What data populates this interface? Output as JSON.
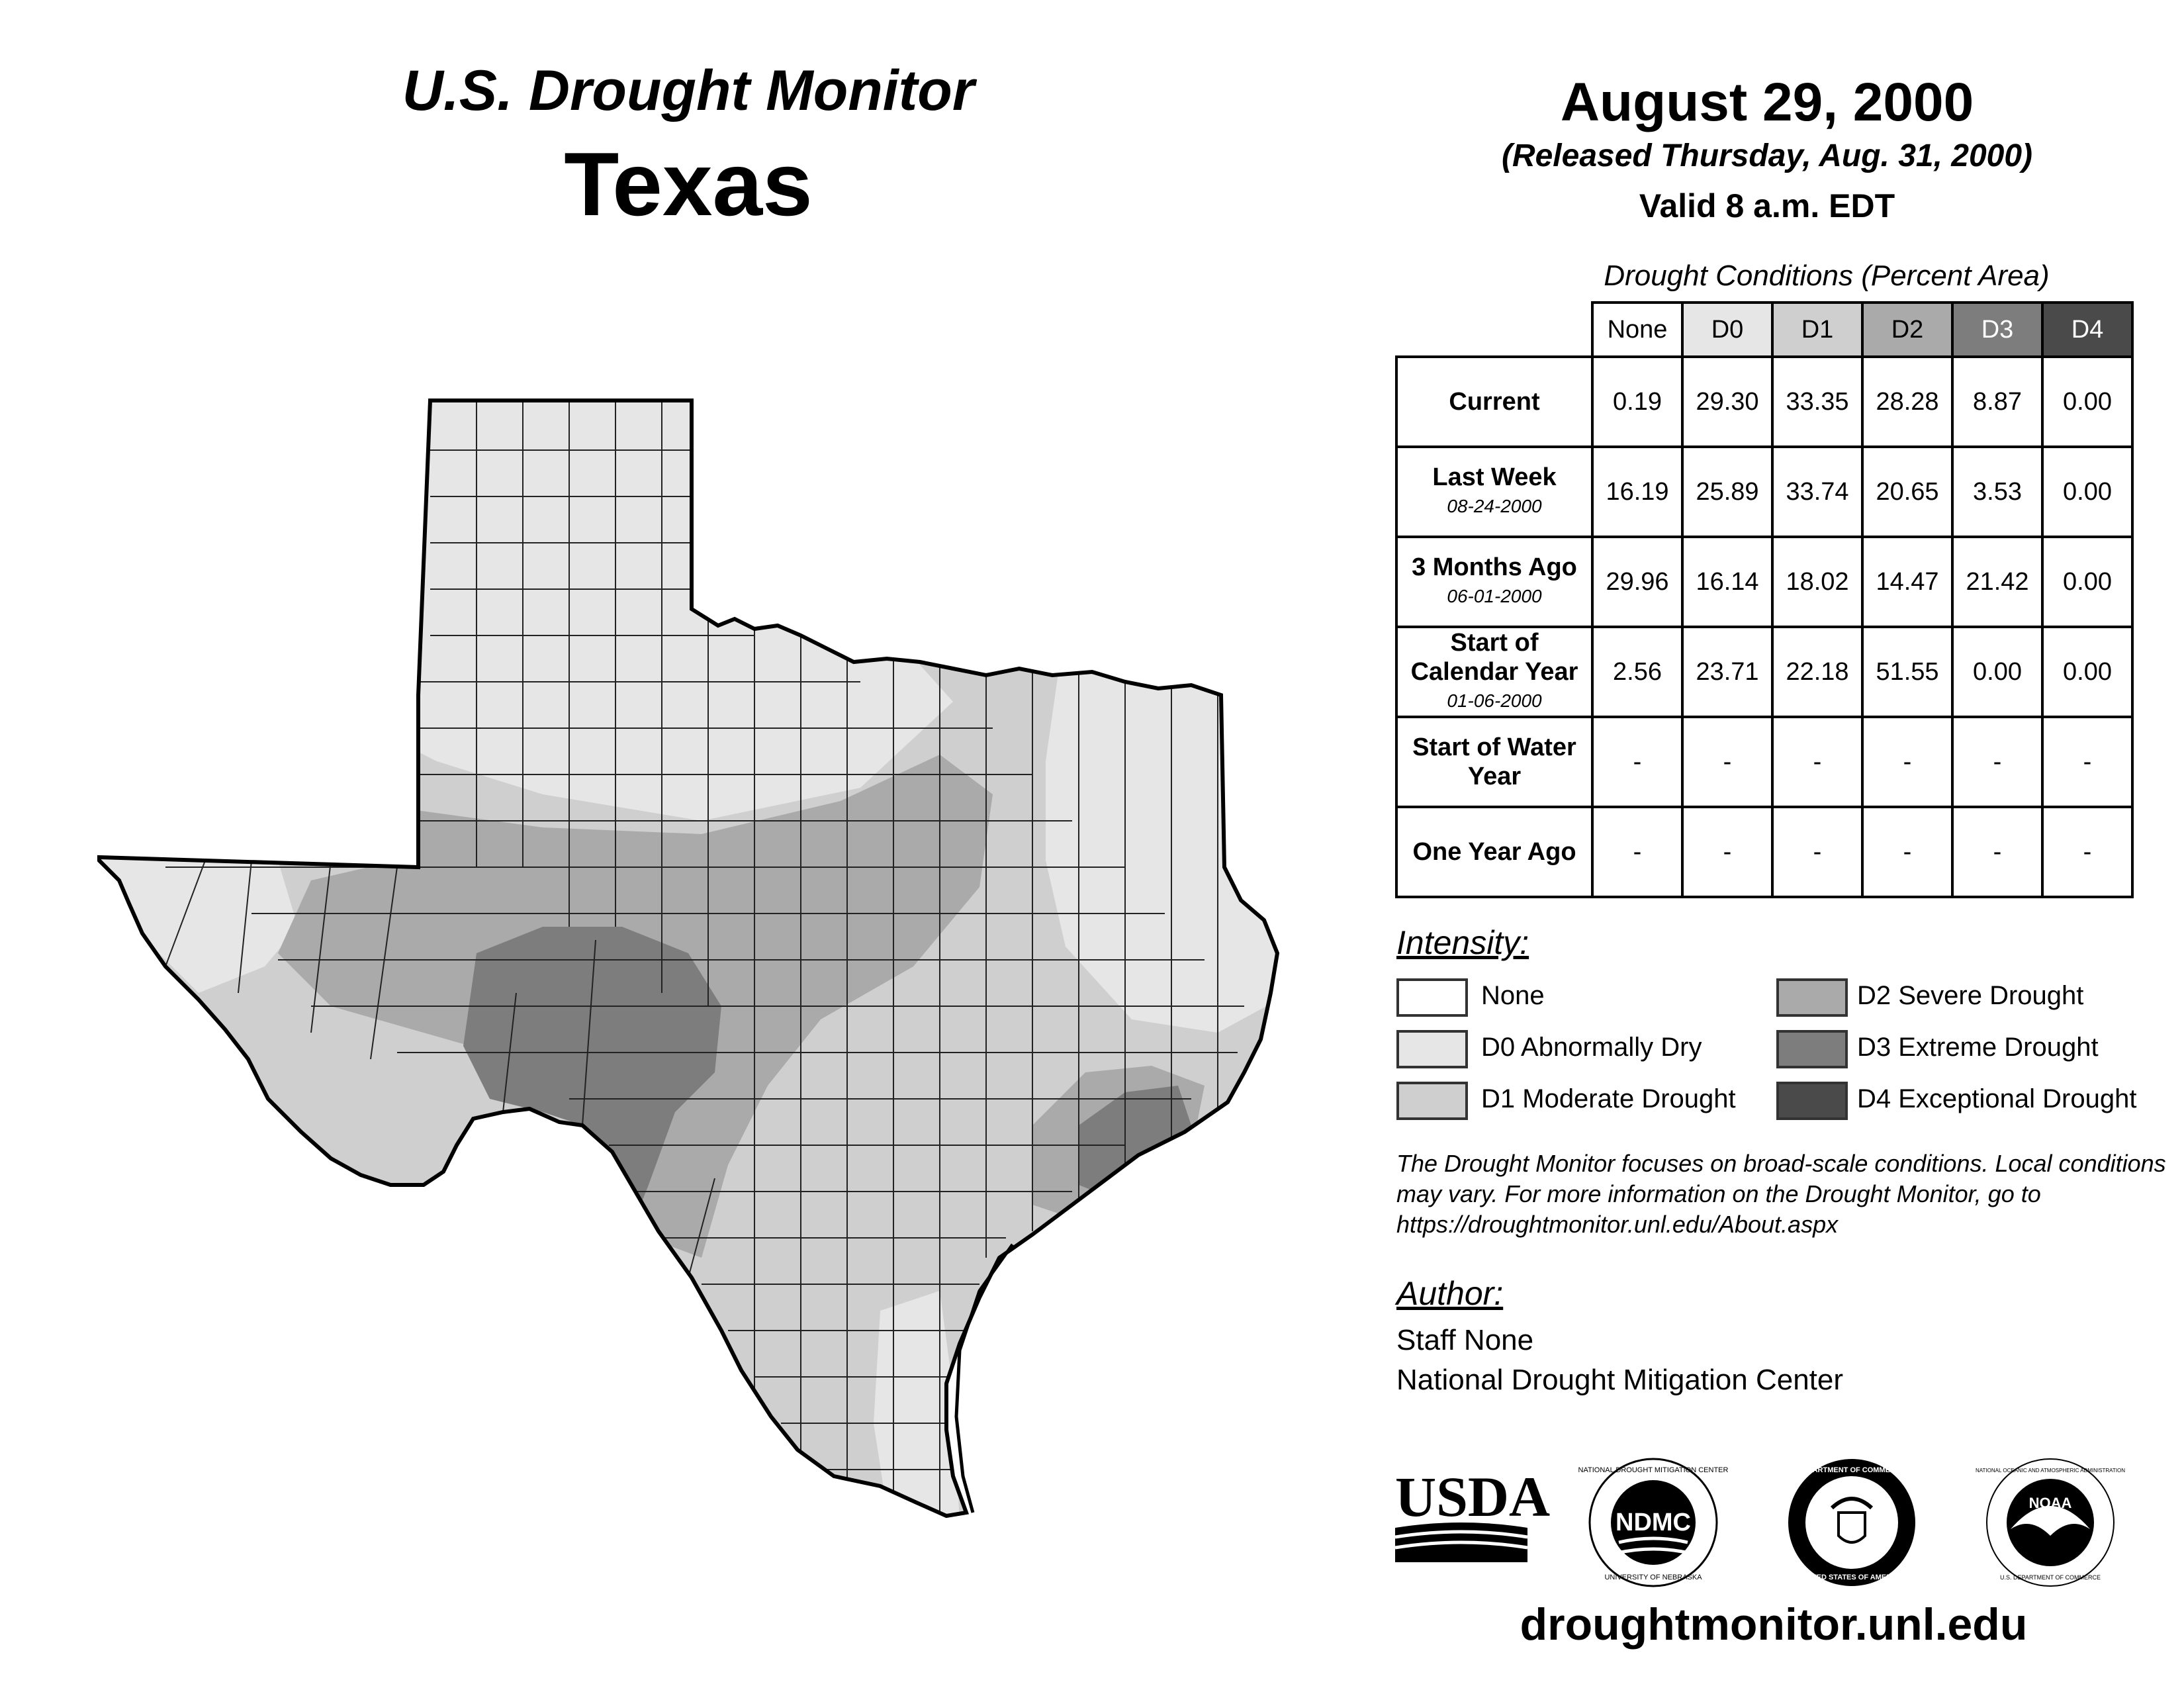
{
  "header": {
    "title": "U.S. Drought Monitor",
    "state": "Texas",
    "date": "August 29, 2000",
    "released": "(Released Thursday, Aug. 31, 2000)",
    "valid": "Valid 8 a.m. EDT"
  },
  "table": {
    "caption": "Drought Conditions (Percent Area)",
    "columns": [
      "None",
      "D0",
      "D1",
      "D2",
      "D3",
      "D4"
    ],
    "rows": [
      {
        "label": "Current",
        "date": "",
        "values": [
          "0.19",
          "29.30",
          "33.35",
          "28.28",
          "8.87",
          "0.00"
        ]
      },
      {
        "label": "Last Week",
        "date": "08-24-2000",
        "values": [
          "16.19",
          "25.89",
          "33.74",
          "20.65",
          "3.53",
          "0.00"
        ]
      },
      {
        "label": "3 Months Ago",
        "date": "06-01-2000",
        "values": [
          "29.96",
          "16.14",
          "18.02",
          "14.47",
          "21.42",
          "0.00"
        ]
      },
      {
        "label": "Start of Calendar Year",
        "date": "01-06-2000",
        "values": [
          "2.56",
          "23.71",
          "22.18",
          "51.55",
          "0.00",
          "0.00"
        ]
      },
      {
        "label": "Start of Water Year",
        "date": "",
        "values": [
          "-",
          "-",
          "-",
          "-",
          "-",
          "-"
        ]
      },
      {
        "label": "One Year Ago",
        "date": "",
        "values": [
          "-",
          "-",
          "-",
          "-",
          "-",
          "-"
        ]
      }
    ]
  },
  "legend": {
    "title": "Intensity:",
    "items": [
      {
        "label": "None",
        "color": "#ffffff"
      },
      {
        "label": "D0 Abnormally Dry",
        "color": "#e6e6e6"
      },
      {
        "label": "D1 Moderate Drought",
        "color": "#cfcfcf"
      },
      {
        "label": "D2 Severe Drought",
        "color": "#aaaaaa"
      },
      {
        "label": "D3 Extreme Drought",
        "color": "#7d7d7d"
      },
      {
        "label": "D4 Exceptional Drought",
        "color": "#4a4a4a"
      }
    ]
  },
  "note": "The Drought Monitor focuses on broad-scale conditions. Local conditions may vary. For more information on the Drought Monitor, go to https://droughtmonitor.unl.edu/About.aspx",
  "author": {
    "title": "Author:",
    "name": "Staff None",
    "org": "National Drought Mitigation Center"
  },
  "logos": {
    "usda": "USDA",
    "ndmc": "NDMC",
    "ndmc_ring": "NATIONAL DROUGHT MITIGATION CENTER",
    "ndmc_ring_bottom": "UNIVERSITY OF NEBRASKA",
    "doc_ring": "DEPARTMENT OF COMMERCE",
    "doc_ring_bottom": "UNITED STATES OF AMERICA",
    "noaa": "NOAA",
    "noaa_ring": "NATIONAL OCEANIC AND ATMOSPHERIC ADMINISTRATION",
    "noaa_ring_bottom": "U.S. DEPARTMENT OF COMMERCE"
  },
  "website": "droughtmonitor.unl.edu"
}
